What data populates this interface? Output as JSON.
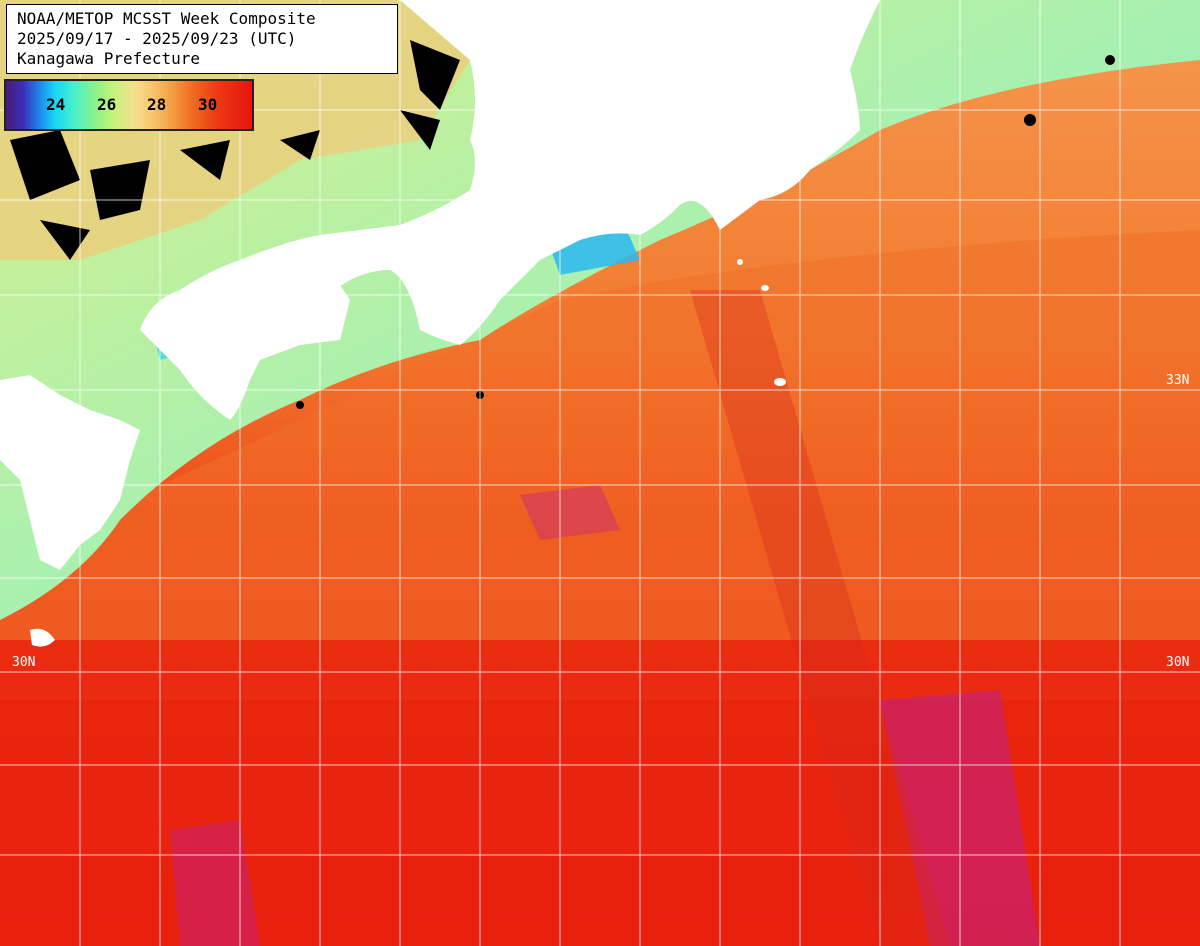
{
  "title": {
    "line1": "NOAA/METOP MCSST Week Composite",
    "line2": "2025/09/17 - 2025/09/23 (UTC)",
    "line3": "Kanagawa Prefecture"
  },
  "legend": {
    "ticks": [
      "24",
      "26",
      "28",
      "30"
    ],
    "colors": {
      "cold": "#4b1a7a",
      "cool": "#19d6f4",
      "mid": "#f4e090",
      "warm": "#f06a22",
      "hot": "#e61410",
      "very_hot": "#b01890"
    }
  },
  "map": {
    "land_color": "#ffffff",
    "missing_color": "#000000",
    "grid_color": "#ffffff",
    "lat_labels": {
      "left_33": "",
      "right_33": "33N",
      "left_30": "30N",
      "right_30": "30N"
    }
  }
}
